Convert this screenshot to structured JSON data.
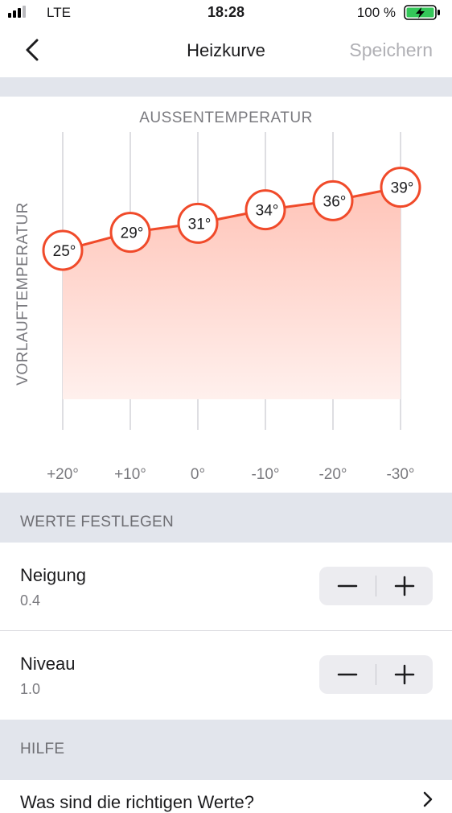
{
  "status_bar": {
    "carrier": "LTE",
    "time": "18:28",
    "battery_percent": "100 %",
    "icons": [
      "signal-icon",
      "battery-charging-icon"
    ]
  },
  "nav": {
    "title": "Heizkurve",
    "save_label": "Speichern",
    "back_icon": "chevron-left-icon"
  },
  "chart_data": {
    "type": "area",
    "title": "AUSSENTEMPERATUR",
    "ylabel": "VORLAUFTEMPERATUR",
    "x_ticks": [
      "+20°",
      "+10°",
      "0°",
      "-10°",
      "-20°",
      "-30°"
    ],
    "x": [
      20,
      10,
      0,
      -10,
      -20,
      -30
    ],
    "values": [
      25,
      29,
      31,
      34,
      36,
      39
    ],
    "point_labels": [
      "25°",
      "29°",
      "31°",
      "34°",
      "36°",
      "39°"
    ],
    "colors": {
      "line": "#f04a2a",
      "fill_top": "#ffc4b8",
      "fill_bottom": "#fff0ed",
      "grid": "#c9c9cf"
    }
  },
  "sections": {
    "values_header": "WERTE FESTLEGEN",
    "help_header": "HILFE"
  },
  "settings": [
    {
      "title": "Neigung",
      "value": "0.4",
      "minus": "−",
      "plus": "+"
    },
    {
      "title": "Niveau",
      "value": "1.0",
      "minus": "−",
      "plus": "+"
    }
  ],
  "help": {
    "item_label": "Was sind die richtigen Werte?",
    "chevron_icon": "chevron-right-icon"
  }
}
